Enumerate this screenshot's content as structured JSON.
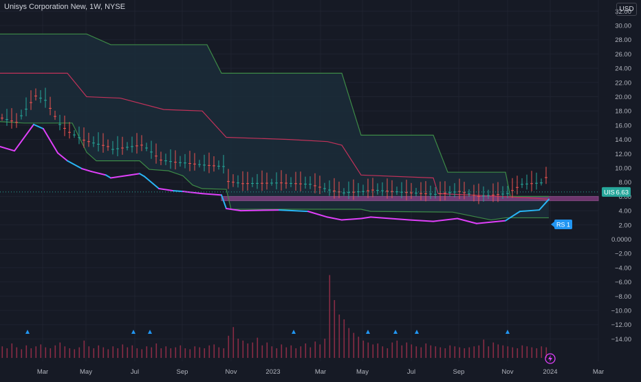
{
  "header": {
    "symbol_title": "Unisys Corporation New, 1W, NYSE",
    "currency": "USD"
  },
  "price_tag": {
    "symbol": "UIS",
    "value": "6.63"
  },
  "rs_label": "RS 1",
  "colors": {
    "background": "#161a25",
    "grid": "#1f2330",
    "text": "#b2b5be",
    "upper_band": "#3d8b47",
    "middle_band": "#c2325a",
    "band_fill": "#1b2d3a",
    "candle_up": "#26a69a",
    "candle_down": "#ef5350",
    "rs_line_low": "#e040fb",
    "rs_line_high": "#29b6f6",
    "zone_fill": "#b54ca8",
    "tag_bg": "#26a69a",
    "rs_bg": "#2196f3",
    "volume": "#8a2c45",
    "marker": "#2196f3"
  },
  "chart_data": {
    "type": "line",
    "x_ticks": [
      "Mar",
      "May",
      "Jul",
      "Sep",
      "Nov",
      "2023",
      "Mar",
      "May",
      "Jul",
      "Sep",
      "Nov",
      "2024",
      "Mar"
    ],
    "y_ticks": [
      "32.00",
      "30.00",
      "28.00",
      "26.00",
      "24.00",
      "22.00",
      "20.00",
      "18.00",
      "16.00",
      "14.00",
      "12.00",
      "10.00",
      "8.00",
      "6.00",
      "4.00",
      "2.00",
      "0.0000",
      "−2.00",
      "−4.00",
      "−6.00",
      "−8.00",
      "−10.00",
      "−12.00",
      "−14.00"
    ],
    "ylim": [
      -15,
      33.5
    ],
    "last_price": 6.63,
    "resistance_zone": [
      5.4,
      6.0
    ],
    "series": [
      {
        "role": "upper_band",
        "points": [
          [
            0,
            28.8
          ],
          [
            18,
            28.8
          ],
          [
            23,
            27.3
          ],
          [
            43,
            27.3
          ],
          [
            46,
            23.3
          ],
          [
            71,
            23.3
          ],
          [
            75,
            14.6
          ],
          [
            90,
            14.6
          ],
          [
            93,
            9.4
          ],
          [
            105,
            9.4
          ],
          [
            106,
            6.0
          ],
          [
            114,
            6.0
          ]
        ]
      },
      {
        "role": "middle_band",
        "points": [
          [
            0,
            23.3
          ],
          [
            14,
            23.3
          ],
          [
            18,
            20.0
          ],
          [
            25,
            19.8
          ],
          [
            34,
            18.2
          ],
          [
            42,
            18.0
          ],
          [
            47,
            14.3
          ],
          [
            60,
            14.0
          ],
          [
            68,
            13.7
          ],
          [
            71,
            13.2
          ],
          [
            75,
            9.0
          ],
          [
            90,
            8.6
          ],
          [
            91,
            6.4
          ],
          [
            104,
            6.0
          ],
          [
            110,
            5.8
          ],
          [
            114,
            5.6
          ]
        ]
      },
      {
        "role": "lower_band",
        "points": [
          [
            0,
            16.5
          ],
          [
            5,
            16.3
          ],
          [
            15,
            16.3
          ],
          [
            18,
            12.2
          ],
          [
            20,
            11.0
          ],
          [
            29,
            11.0
          ],
          [
            31,
            9.8
          ],
          [
            35,
            9.6
          ],
          [
            38,
            8.9
          ],
          [
            40,
            7.6
          ],
          [
            42,
            7.1
          ],
          [
            47,
            7.0
          ],
          [
            48,
            4.2
          ],
          [
            75,
            4.2
          ],
          [
            77,
            3.9
          ],
          [
            94,
            3.8
          ],
          [
            102,
            2.7
          ],
          [
            105,
            3.0
          ],
          [
            114,
            3.0
          ]
        ]
      },
      {
        "role": "rs_line",
        "points": [
          [
            0,
            13.0
          ],
          [
            3,
            12.4
          ],
          [
            7,
            16.1
          ],
          [
            9,
            15.5
          ],
          [
            12,
            12.1
          ],
          [
            14,
            11.0
          ],
          [
            17,
            9.9
          ],
          [
            19,
            9.5
          ],
          [
            22,
            9.0
          ],
          [
            23,
            8.6
          ],
          [
            27,
            9.0
          ],
          [
            29,
            9.2
          ],
          [
            30,
            8.8
          ],
          [
            33,
            7.1
          ],
          [
            36,
            6.8
          ],
          [
            38,
            6.7
          ],
          [
            42,
            6.4
          ],
          [
            46,
            6.2
          ],
          [
            47,
            4.3
          ],
          [
            50,
            4.0
          ],
          [
            58,
            4.1
          ],
          [
            64,
            3.9
          ],
          [
            68,
            3.1
          ],
          [
            71,
            2.7
          ],
          [
            75,
            2.9
          ],
          [
            77,
            3.1
          ],
          [
            85,
            2.7
          ],
          [
            90,
            2.5
          ],
          [
            95,
            2.9
          ],
          [
            99,
            2.2
          ],
          [
            105,
            2.6
          ],
          [
            108,
            3.9
          ],
          [
            112,
            4.1
          ],
          [
            114,
            5.6
          ]
        ]
      },
      {
        "role": "volume",
        "values": [
          1.2,
          1.0,
          1.5,
          1.1,
          0.9,
          1.3,
          1.0,
          1.2,
          1.4,
          1.1,
          1.0,
          1.3,
          1.6,
          1.2,
          1.0,
          0.9,
          1.1,
          1.8,
          1.2,
          1.0,
          1.3,
          1.1,
          0.9,
          1.2,
          1.0,
          1.4,
          1.1,
          1.3,
          1.0,
          0.9,
          1.2,
          1.1,
          1.5,
          1.0,
          1.2,
          1.0,
          1.1,
          1.3,
          1.0,
          0.9,
          1.2,
          1.1,
          1.0,
          1.3,
          1.4,
          1.1,
          1.0,
          2.3,
          3.2,
          2.0,
          1.8,
          1.5,
          1.6,
          2.1,
          1.3,
          1.6,
          1.2,
          1.0,
          1.4,
          1.1,
          1.3,
          1.0,
          1.2,
          1.5,
          1.1,
          1.7,
          1.4,
          2.0,
          8.6,
          6.0,
          4.5,
          4.0,
          3.1,
          2.6,
          2.2,
          1.8,
          1.6,
          1.4,
          1.5,
          1.2,
          1.0,
          1.6,
          1.8,
          1.3,
          1.6,
          1.4,
          1.2,
          1.1,
          1.5,
          1.3,
          1.2,
          1.1,
          1.0,
          1.3,
          1.2,
          1.1,
          1.0,
          1.1,
          1.2,
          1.3,
          1.9,
          1.2,
          1.6,
          1.4,
          1.3,
          1.2,
          1.1,
          1.0,
          1.3,
          1.2,
          1.1,
          1.0,
          1.2,
          1.1
        ]
      }
    ]
  }
}
